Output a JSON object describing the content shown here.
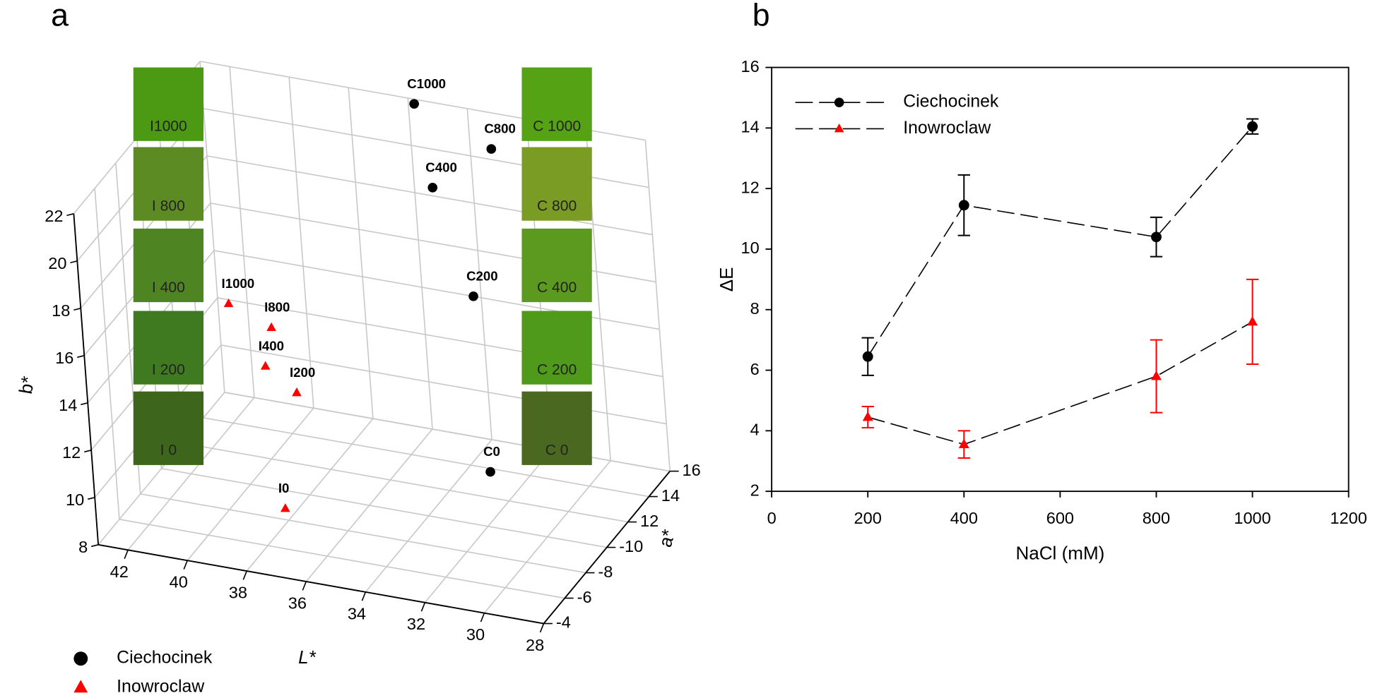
{
  "chart_data": [
    {
      "type": "scatter3d",
      "panel_label": "a",
      "xlabel": "L*",
      "ylabel": "a*",
      "zlabel": "b*",
      "xlim": [
        43,
        28
      ],
      "xticks": [
        42,
        40,
        38,
        36,
        34,
        32,
        30,
        28
      ],
      "ylim": [
        -4,
        -16
      ],
      "yticks": [
        -4,
        -6,
        -8,
        -10,
        {
          "value": -12,
          "label": "12"
        },
        {
          "value": -14,
          "label": "14"
        },
        {
          "value": -16,
          "label": "16"
        }
      ],
      "zlim": [
        8,
        22
      ],
      "zticks": [
        8,
        10,
        12,
        14,
        16,
        18,
        20,
        22
      ],
      "series": [
        {
          "name": "Ciechocinek",
          "color": "#000000",
          "marker": "circle",
          "point_labels": [
            "C0",
            "C200",
            "C400",
            "C800",
            "C1000"
          ],
          "x": [
            31.0,
            32.7,
            34.6,
            32.5,
            35.8
          ],
          "y": [
            -8,
            -12,
            -14,
            -14,
            -16
          ],
          "z": [
            11.6,
            16.5,
            19.6,
            21.7,
            21.8
          ]
        },
        {
          "name": "Inowroclaw",
          "color": "#ff0000",
          "marker": "triangle",
          "point_labels": [
            "I0",
            "I200",
            "I400",
            "I800",
            "I1000"
          ],
          "x": [
            37.7,
            37.8,
            38.8,
            38.5,
            39.9
          ],
          "y": [
            -7,
            -9,
            -9,
            -9,
            -9
          ],
          "z": [
            9.1,
            12.9,
            13.8,
            15.5,
            16.2
          ]
        }
      ],
      "swatches": [
        {
          "label": "I1000",
          "color": "#4c9a14"
        },
        {
          "label": "I 800",
          "color": "#5b8b22"
        },
        {
          "label": "I 400",
          "color": "#4f8422"
        },
        {
          "label": "I 200",
          "color": "#3f7a20"
        },
        {
          "label": "I 0",
          "color": "#3d661c"
        },
        {
          "label": "C 1000",
          "color": "#55a214"
        },
        {
          "label": "C 800",
          "color": "#7a9c24"
        },
        {
          "label": "C 400",
          "color": "#5b9a1e"
        },
        {
          "label": "C 200",
          "color": "#4f9a1a"
        },
        {
          "label": "C 0",
          "color": "#4a6820"
        }
      ],
      "legend": "lower left"
    },
    {
      "type": "line",
      "panel_label": "b",
      "xlabel": "NaCl (mM)",
      "ylabel": "ΔE",
      "xlim": [
        0,
        1200
      ],
      "xticks": [
        0,
        200,
        400,
        600,
        800,
        1000,
        1200
      ],
      "ylim": [
        2,
        16
      ],
      "yticks": [
        2,
        4,
        6,
        8,
        10,
        12,
        14,
        16
      ],
      "x": [
        200,
        400,
        800,
        1000
      ],
      "series": [
        {
          "name": "Ciechocinek",
          "color": "#000000",
          "marker": "circle",
          "values": [
            6.45,
            11.45,
            10.4,
            14.05
          ],
          "errors": [
            0.62,
            1.0,
            0.65,
            0.25
          ]
        },
        {
          "name": "Inowroclaw",
          "color": "#ff0000",
          "marker": "triangle",
          "values": [
            4.45,
            3.55,
            5.8,
            7.6
          ],
          "errors": [
            0.35,
            0.45,
            1.2,
            1.4
          ]
        }
      ],
      "legend": "upper left"
    }
  ]
}
